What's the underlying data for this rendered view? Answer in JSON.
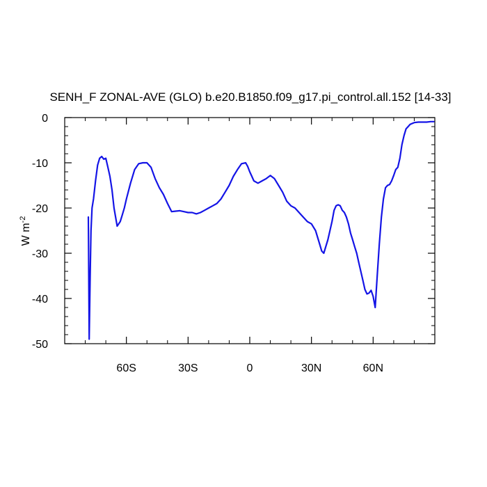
{
  "chart_data": {
    "type": "line",
    "title": "SENH_F ZONAL-AVE (GLO) b.e20.B1850.f09_g17.pi_control.all.152 [14-33]",
    "xlabel": "",
    "ylabel": "W m",
    "ylabel_superscript": "-2",
    "xlim": [
      -90,
      90
    ],
    "ylim": [
      -50,
      0
    ],
    "x_ticks": [
      {
        "value": -60,
        "label": "60S"
      },
      {
        "value": -30,
        "label": "30S"
      },
      {
        "value": 0,
        "label": "0"
      },
      {
        "value": 30,
        "label": "30N"
      },
      {
        "value": 60,
        "label": "60N"
      }
    ],
    "y_ticks": [
      {
        "value": 0,
        "label": "0"
      },
      {
        "value": -10,
        "label": "-10"
      },
      {
        "value": -20,
        "label": "-20"
      },
      {
        "value": -30,
        "label": "-30"
      },
      {
        "value": -40,
        "label": "-40"
      },
      {
        "value": -50,
        "label": "-50"
      }
    ],
    "grid": false,
    "legend": "none",
    "series": [
      {
        "color": "#1414e6",
        "x": [
          -78.5,
          -78.1,
          -77.6,
          -77.2,
          -76.7,
          -76.0,
          -75.0,
          -74.0,
          -73.0,
          -72.0,
          -71.0,
          -70.0,
          -69.0,
          -68.0,
          -67.0,
          -66.0,
          -64.5,
          -63.0,
          -62.0,
          -61.0,
          -60.0,
          -58.0,
          -56.0,
          -54.0,
          -52.0,
          -50.0,
          -48.0,
          -46.0,
          -44.0,
          -42.0,
          -40.0,
          -38.0,
          -36.0,
          -34.0,
          -32.0,
          -30.0,
          -28.0,
          -26.0,
          -24.0,
          -22.0,
          -20.0,
          -18.0,
          -16.0,
          -14.0,
          -12.0,
          -10.0,
          -8.0,
          -6.0,
          -4.0,
          -2.0,
          -1.0,
          0.0,
          1.0,
          2.0,
          4.0,
          6.0,
          8.0,
          10.0,
          12.0,
          14.0,
          16.0,
          18.0,
          20.0,
          22.0,
          24.0,
          26.0,
          28.0,
          30.0,
          32.0,
          34.0,
          35.0,
          36.0,
          38.0,
          40.0,
          41.0,
          42.0,
          43.0,
          44.0,
          45.0,
          46.0,
          47.0,
          48.0,
          49.0,
          50.0,
          51.0,
          52.0,
          53.0,
          54.0,
          55.0,
          56.0,
          57.0,
          58.0,
          59.0,
          60.0,
          61.0,
          62.0,
          63.0,
          64.0,
          65.0,
          66.0,
          67.0,
          68.0,
          69.0,
          70.0,
          71.0,
          72.0,
          73.0,
          74.0,
          75.0,
          76.0,
          77.0,
          78.0,
          80.0,
          82.0,
          84.0,
          86.0,
          88.0,
          89.5
        ],
        "y": [
          -22.0,
          -49.0,
          -35.0,
          -25.0,
          -20.0,
          -18.0,
          -14.0,
          -10.5,
          -9.0,
          -8.6,
          -9.2,
          -9.0,
          -11.0,
          -13.0,
          -16.0,
          -20.0,
          -24.0,
          -23.0,
          -21.5,
          -20.0,
          -18.0,
          -14.5,
          -11.5,
          -10.2,
          -10.0,
          -10.0,
          -11.0,
          -13.5,
          -15.5,
          -17.0,
          -19.0,
          -20.8,
          -20.7,
          -20.6,
          -20.8,
          -21.0,
          -21.0,
          -21.3,
          -21.0,
          -20.5,
          -20.0,
          -19.5,
          -19.0,
          -18.0,
          -16.5,
          -15.0,
          -13.0,
          -11.5,
          -10.2,
          -10.0,
          -10.8,
          -12.0,
          -13.0,
          -14.0,
          -14.5,
          -14.0,
          -13.5,
          -12.8,
          -13.5,
          -15.0,
          -16.5,
          -18.5,
          -19.5,
          -20.0,
          -21.0,
          -22.0,
          -23.0,
          -23.5,
          -25.0,
          -28.0,
          -29.5,
          -30.0,
          -27.0,
          -23.0,
          -20.5,
          -19.5,
          -19.3,
          -19.5,
          -20.5,
          -21.0,
          -22.0,
          -23.5,
          -25.5,
          -27.0,
          -28.5,
          -30.0,
          -32.0,
          -34.0,
          -36.0,
          -38.0,
          -39.0,
          -38.8,
          -38.2,
          -39.5,
          -42.0,
          -35.0,
          -28.0,
          -22.0,
          -18.0,
          -15.5,
          -15.0,
          -14.8,
          -14.0,
          -12.8,
          -11.5,
          -11.0,
          -9.0,
          -6.0,
          -4.0,
          -2.5,
          -2.0,
          -1.5,
          -1.1,
          -1.0,
          -1.0,
          -1.0,
          -0.9,
          -0.9
        ]
      }
    ]
  }
}
